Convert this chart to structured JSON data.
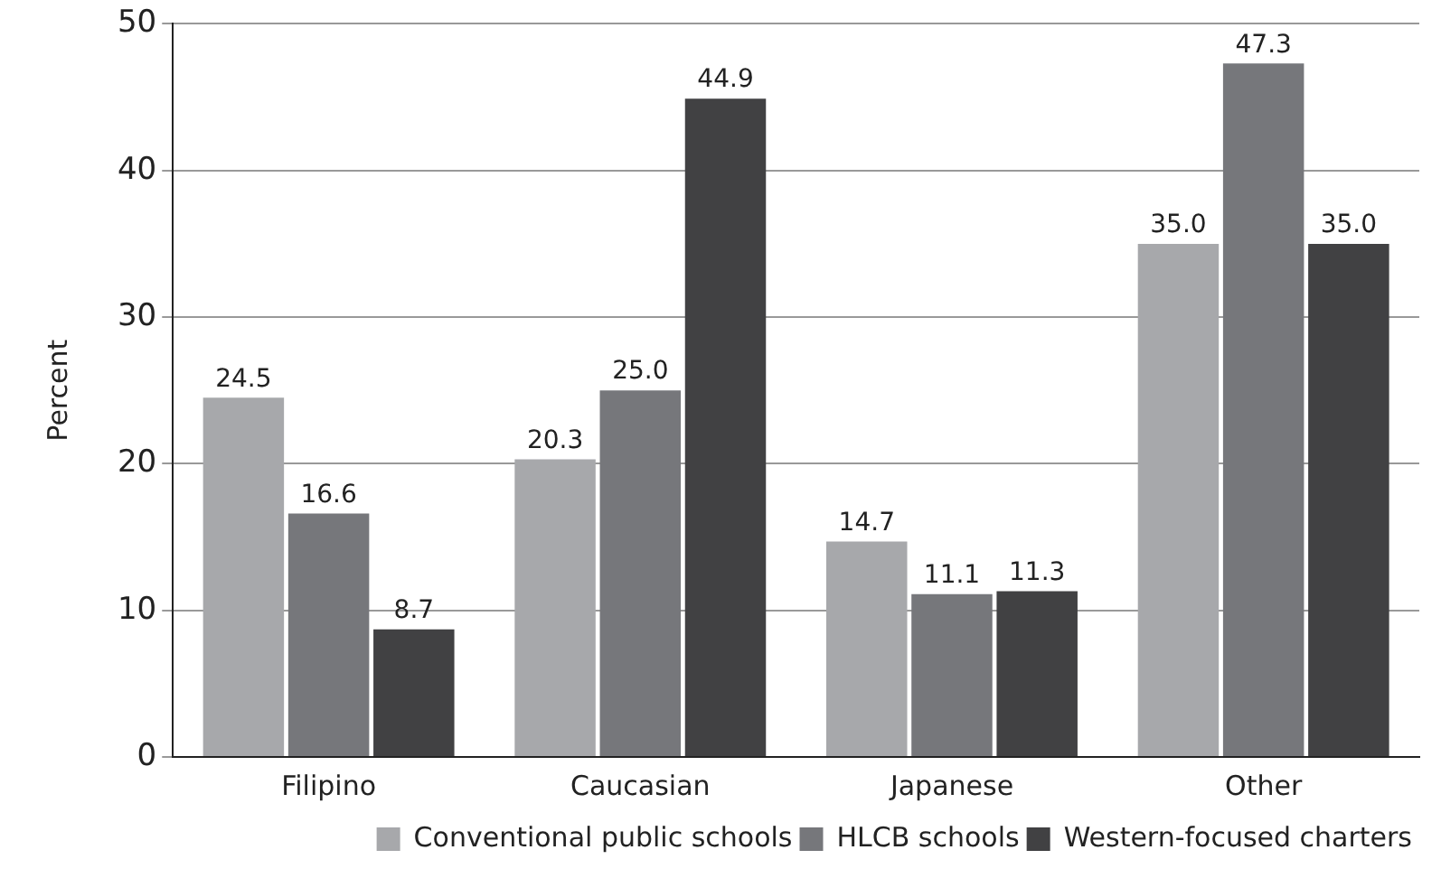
{
  "chart_data": {
    "type": "bar",
    "ylabel": "Percent",
    "categories": [
      "Filipino",
      "Caucasian",
      "Japanese",
      "Other"
    ],
    "series": [
      {
        "name": "Conventional public schools",
        "color": "#a7a8ab",
        "values": [
          24.5,
          20.3,
          14.7,
          35.0
        ],
        "value_labels": [
          "24.5",
          "20.3",
          "14.7",
          "35.0"
        ]
      },
      {
        "name": "HLCB schools",
        "color": "#76777b",
        "values": [
          16.6,
          25.0,
          11.1,
          47.3
        ],
        "value_labels": [
          "16.6",
          "25.0",
          "11.1",
          "47.3"
        ]
      },
      {
        "name": "Western-focused charters",
        "color": "#414143",
        "values": [
          8.7,
          44.9,
          11.3,
          35.0
        ],
        "value_labels": [
          "8.7",
          "44.9",
          "11.3",
          "35.0"
        ]
      }
    ],
    "ylim": [
      0,
      50
    ],
    "yticks": [
      0,
      10,
      20,
      30,
      40,
      50
    ],
    "grid": "y",
    "legend": "bottom"
  }
}
